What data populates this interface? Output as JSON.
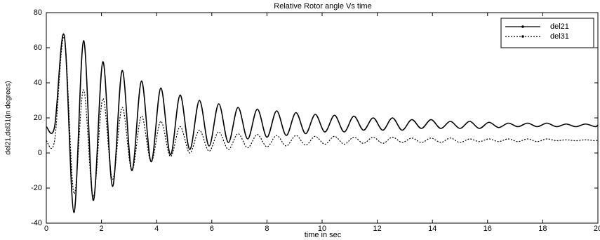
{
  "chart_data": {
    "type": "line",
    "title": "Relative Rotor angle Vs time",
    "xlabel": "time in sec",
    "ylabel": "del21,del31(in degrees)",
    "x": [
      0,
      0.3,
      0.65,
      1,
      1.35,
      1.7,
      2.05,
      2.4,
      2.75,
      3.1,
      3.45,
      3.8,
      4.15,
      4.5,
      4.85,
      5.2,
      5.55,
      5.9,
      6.25,
      6.6,
      6.95,
      7.3,
      7.65,
      8,
      8.35,
      8.7,
      9.05,
      9.4,
      9.75,
      10.1,
      10.45,
      10.8,
      11.15,
      11.5,
      11.85,
      12.2,
      12.55,
      12.9,
      13.25,
      13.6,
      13.95,
      14.3,
      14.65,
      15,
      15.35,
      15.7,
      16.05,
      16.4,
      16.75,
      17.1,
      17.45,
      17.8,
      18.15,
      18.5,
      18.85,
      19.2,
      19.55,
      19.9,
      20
    ],
    "series": [
      {
        "name": "del21",
        "color": "#000000",
        "dash": "solid",
        "values": [
          15,
          15,
          67,
          -34,
          64,
          -27,
          52,
          -19,
          47,
          -10,
          41,
          -5,
          37,
          -1,
          33,
          2,
          30,
          4,
          28,
          6,
          26,
          8,
          25,
          9,
          24,
          10,
          23,
          11,
          22,
          12,
          21.5,
          12,
          21,
          13,
          20,
          13,
          20,
          13,
          19,
          14,
          19,
          14,
          18,
          14,
          18,
          14,
          17.5,
          14.5,
          17,
          15,
          17,
          15,
          17,
          15,
          16.5,
          15,
          16.5,
          15,
          16
        ]
      },
      {
        "name": "del31",
        "color": "#000000",
        "dash": "dotted",
        "values": [
          7,
          7,
          66,
          -23,
          36,
          -25,
          31,
          -15,
          26,
          -10,
          21,
          -5,
          18,
          -2,
          15,
          0,
          13,
          1,
          12,
          2,
          11,
          3,
          10.5,
          3.5,
          10,
          4,
          10,
          4.5,
          9.5,
          5,
          9.5,
          5,
          9,
          5.5,
          9,
          5.5,
          9,
          6,
          8.5,
          6,
          8.5,
          6,
          8.5,
          6,
          8,
          6.5,
          8,
          6.5,
          8,
          6.5,
          8,
          6.5,
          8,
          7,
          7.5,
          7,
          7.5,
          7,
          7.5
        ]
      }
    ],
    "xlim": [
      0,
      20
    ],
    "xticks": [
      0,
      2,
      4,
      6,
      8,
      10,
      12,
      14,
      16,
      18,
      20
    ],
    "ylim": [
      -40,
      80
    ],
    "yticks": [
      -40,
      -20,
      0,
      20,
      40,
      60,
      80
    ],
    "grid": false,
    "legend": "upper right"
  }
}
